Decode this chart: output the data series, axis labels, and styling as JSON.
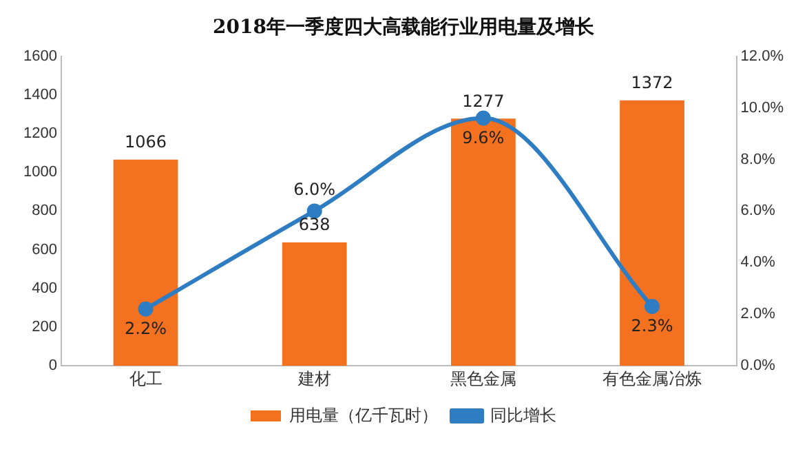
{
  "chart_data": {
    "type": "bar",
    "title": "2018年一季度四大高载能行业用电量及增长",
    "categories": [
      "化工",
      "建材",
      "黑色金属",
      "有色金属冶炼"
    ],
    "series": [
      {
        "name": "用电量（亿千瓦时）",
        "color": "#f4711f",
        "values": [
          1066,
          638,
          1277,
          1372
        ],
        "value_labels": [
          "1066",
          "638",
          "1277",
          "1372"
        ]
      },
      {
        "name": "同比增长",
        "type": "line",
        "axis": "y2",
        "color": "#2e7dc2",
        "values": [
          2.2,
          6.0,
          9.6,
          2.3
        ],
        "value_labels": [
          "2.2%",
          "6.0%",
          "9.6%",
          "2.3%"
        ],
        "marker": "circle"
      }
    ],
    "ylim": [
      0,
      1600
    ],
    "yticks": [
      0,
      200,
      400,
      600,
      800,
      1000,
      1200,
      1400,
      1600
    ],
    "y2lim": [
      0,
      12
    ],
    "y2ticks": [
      {
        "value": 0,
        "label": "0.0%"
      },
      {
        "value": 2,
        "label": "2.0%"
      },
      {
        "value": 4,
        "label": "4.0%"
      },
      {
        "value": 6,
        "label": "6.0%"
      },
      {
        "value": 8,
        "label": "8.0%"
      },
      {
        "value": 10,
        "label": "10.0%"
      },
      {
        "value": 12,
        "label": "12.0%"
      }
    ],
    "legend": "bottom"
  }
}
